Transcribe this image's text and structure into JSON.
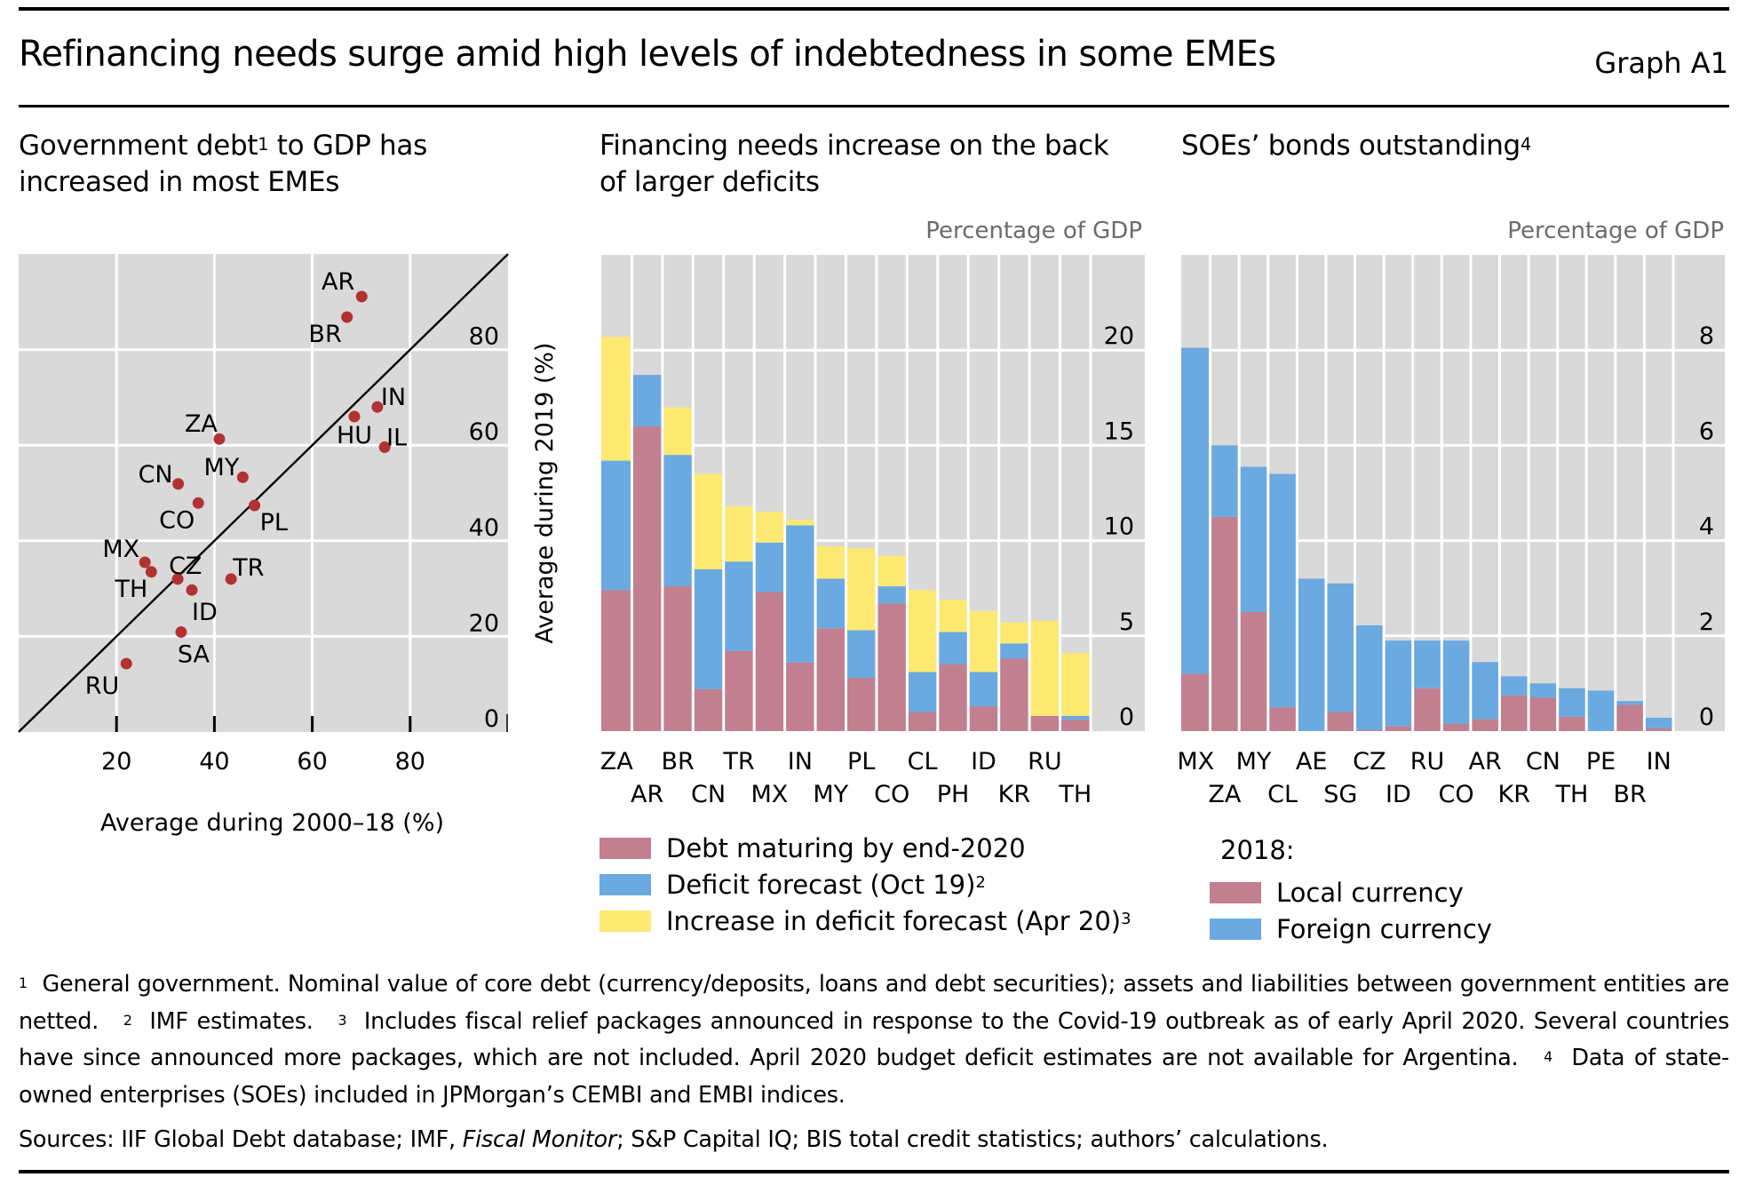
{
  "header": {
    "title": "Refinancing needs surge amid high levels of indebtedness in some EMEs",
    "graph_id": "Graph A1"
  },
  "colors": {
    "panel_bg": "#d9d9d9",
    "grid": "#ffffff",
    "scatter_point": "#b23232",
    "debt_maturing": "#c27f8f",
    "deficit_forecast": "#6aaae0",
    "deficit_increase": "#fde972",
    "local_currency": "#c27f8f",
    "foreign_currency": "#6aaae0",
    "unit_label": "#6b6b6b"
  },
  "panels": [
    {
      "title_line1_pre": "Government debt",
      "title_sup": "1",
      "title_line1_post": " to GDP has",
      "title_line2": "increased in most EMEs"
    },
    {
      "title_line1": "Financing needs increase on the back",
      "title_line2": "of larger deficits",
      "unit": "Percentage of GDP"
    },
    {
      "title_line1": "SOEs’ bonds outstanding",
      "title_sup": "4",
      "unit": "Percentage of GDP"
    }
  ],
  "chart_data": [
    {
      "type": "scatter",
      "title": "Government debt to GDP has increased in most EMEs",
      "xlabel": "Average during 2000–18 (%)",
      "ylabel": "Average during 2019 (%)",
      "xlim": [
        0,
        100
      ],
      "ylim": [
        0,
        100
      ],
      "xticks": [
        20,
        40,
        60,
        80
      ],
      "yticks": [
        0,
        20,
        40,
        60,
        80
      ],
      "grid": true,
      "reference_line": "45-degree line (y = x)",
      "points": [
        {
          "label": "AR",
          "x": 70.1,
          "y": 91.1
        },
        {
          "label": "BR",
          "x": 67.1,
          "y": 86.8
        },
        {
          "label": "IN",
          "x": 73.3,
          "y": 68.0
        },
        {
          "label": "HU",
          "x": 68.6,
          "y": 66.0
        },
        {
          "label": "IL",
          "x": 74.8,
          "y": 59.6
        },
        {
          "label": "ZA",
          "x": 41.0,
          "y": 61.3
        },
        {
          "label": "CN",
          "x": 32.6,
          "y": 51.9
        },
        {
          "label": "MY",
          "x": 45.8,
          "y": 53.3
        },
        {
          "label": "CO",
          "x": 36.7,
          "y": 47.9
        },
        {
          "label": "PL",
          "x": 48.2,
          "y": 47.4
        },
        {
          "label": "MX",
          "x": 25.8,
          "y": 35.5
        },
        {
          "label": "TH",
          "x": 27.1,
          "y": 33.5
        },
        {
          "label": "CZ",
          "x": 32.5,
          "y": 32.0
        },
        {
          "label": "ID",
          "x": 35.4,
          "y": 29.7
        },
        {
          "label": "TR",
          "x": 43.4,
          "y": 32.0
        },
        {
          "label": "SA",
          "x": 33.2,
          "y": 20.9
        },
        {
          "label": "RU",
          "x": 22.0,
          "y": 14.3
        }
      ]
    },
    {
      "type": "bar",
      "stacked": true,
      "title": "Financing needs increase on the back of larger deficits",
      "ylabel": "Percentage of GDP",
      "ylim": [
        0,
        25
      ],
      "yticks": [
        0,
        5,
        10,
        15,
        20
      ],
      "grid": true,
      "categories": [
        "ZA",
        "AR",
        "BR",
        "CN",
        "TR",
        "MX",
        "IN",
        "MY",
        "PL",
        "CO",
        "CL",
        "PH",
        "ID",
        "KR",
        "RU",
        "TH"
      ],
      "series": [
        {
          "name": "Debt maturing by end-2020",
          "sup": "",
          "values": [
            7.4,
            16.0,
            7.6,
            2.2,
            4.2,
            7.3,
            3.6,
            5.4,
            2.8,
            6.7,
            1.0,
            3.5,
            1.3,
            3.8,
            0.8,
            0.6
          ]
        },
        {
          "name": "Deficit forecast (Oct 19)",
          "sup": "2",
          "values": [
            6.8,
            2.7,
            6.9,
            6.3,
            4.7,
            2.6,
            7.2,
            2.6,
            2.5,
            0.9,
            2.1,
            1.7,
            1.8,
            0.8,
            0.0,
            0.2
          ]
        },
        {
          "name": "Increase in deficit forecast (Apr 20)",
          "sup": "3",
          "values": [
            6.5,
            0.0,
            2.5,
            5.0,
            2.9,
            1.6,
            0.3,
            1.7,
            4.3,
            1.6,
            4.3,
            1.7,
            3.2,
            1.1,
            5.0,
            3.3
          ]
        }
      ]
    },
    {
      "type": "bar",
      "stacked": true,
      "title": "SOEs’ bonds outstanding",
      "ylabel": "Percentage of GDP",
      "ylim": [
        0,
        10
      ],
      "yticks": [
        0,
        2,
        4,
        6,
        8
      ],
      "grid": true,
      "legend_title": "2018:",
      "categories": [
        "MX",
        "ZA",
        "MY",
        "CL",
        "AE",
        "SG",
        "CZ",
        "ID",
        "RU",
        "CO",
        "AR",
        "KR",
        "CN",
        "TH",
        "PE",
        "BR",
        "IN"
      ],
      "series": [
        {
          "name": "Local currency",
          "values": [
            1.2,
            4.5,
            2.5,
            0.5,
            0.0,
            0.4,
            0.02,
            0.1,
            0.9,
            0.15,
            0.25,
            0.75,
            0.7,
            0.3,
            0.0,
            0.55,
            0.06
          ]
        },
        {
          "name": "Foreign currency",
          "values": [
            6.85,
            1.5,
            3.05,
            4.9,
            3.2,
            2.7,
            2.2,
            1.8,
            1.0,
            1.75,
            1.2,
            0.4,
            0.3,
            0.6,
            0.85,
            0.08,
            0.22
          ]
        }
      ]
    }
  ],
  "footnotes": {
    "fn1_mark": "1",
    "fn1": "General government. Nominal value of core debt (currency/deposits, loans and debt securities); assets and liabilities between government entities are netted.",
    "fn2_mark": "2",
    "fn2": "IMF estimates.",
    "fn3_mark": "3",
    "fn3": "Includes fiscal relief packages announced in response to the Covid-19 outbreak as of early April 2020. Several countries have since announced more packages, which are not included. April 2020 budget deficit estimates are not available for Argentina.",
    "fn4_mark": "4",
    "fn4": "Data of state-owned enterprises (SOEs) included in JPMorgan’s CEMBI and EMBI indices."
  },
  "sources": {
    "prefix": "Sources: IIF Global Debt database; IMF, ",
    "italic": "Fiscal Monitor",
    "suffix": "; S&P Capital IQ; BIS total credit statistics; authors’ calculations."
  }
}
